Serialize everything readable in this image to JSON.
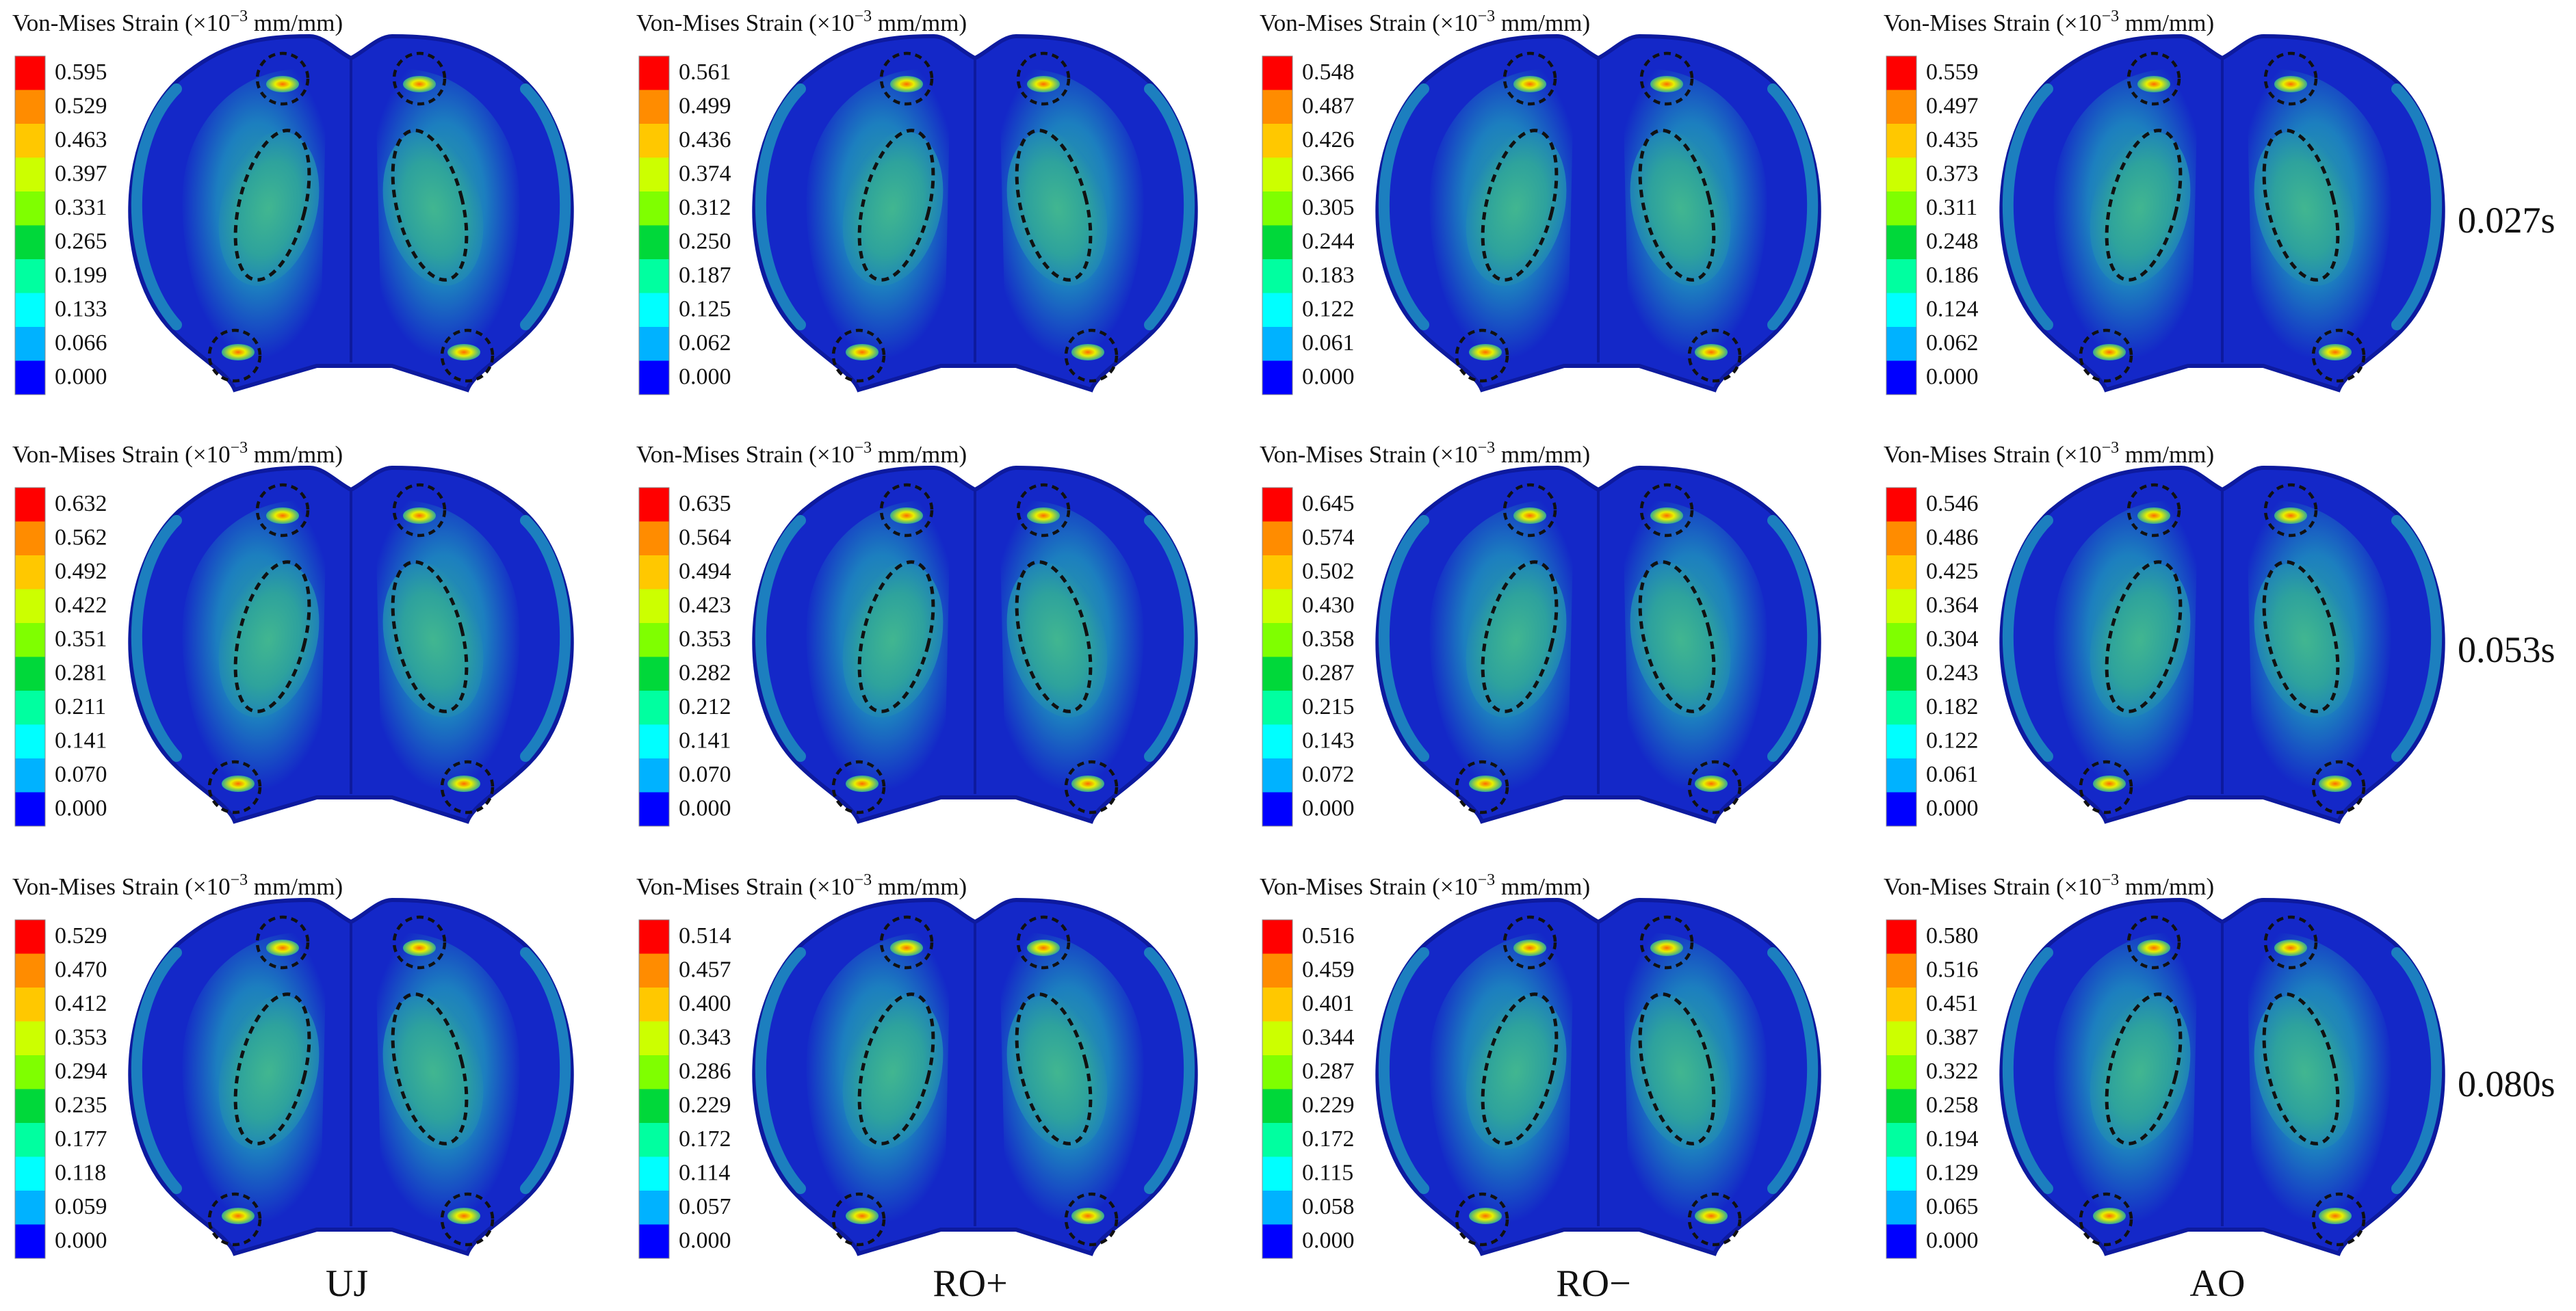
{
  "figure": {
    "legend_title": {
      "prefix": "Von-Mises Strain (",
      "times": "×",
      "ten": "10",
      "exponent": "−3",
      "unit": " mm/mm)"
    },
    "colormap": [
      "#ff0000",
      "#ff8c00",
      "#ffc800",
      "#ccff00",
      "#7fff00",
      "#00d83a",
      "#00ffa0",
      "#00ffff",
      "#00b2ff",
      "#0000ff"
    ],
    "surface_palette": {
      "outline": "#0d1a9e",
      "base": "#1428c8",
      "mid": "#1c7fbf",
      "high": "#2fa59a",
      "peak": "#44b98e",
      "hotspot": "#e8f000",
      "hotspot_core": "#ff6a00"
    },
    "columns": [
      "UJ",
      "RO+",
      "RO−",
      "AO"
    ],
    "rows": [
      "0.027s",
      "0.053s",
      "0.080s"
    ]
  },
  "panels": [
    {
      "column": "UJ",
      "time": "0.027s",
      "ticks": [
        "0.595",
        "0.529",
        "0.463",
        "0.397",
        "0.331",
        "0.265",
        "0.199",
        "0.133",
        "0.066",
        "0.000"
      ]
    },
    {
      "column": "RO+",
      "time": "0.027s",
      "ticks": [
        "0.561",
        "0.499",
        "0.436",
        "0.374",
        "0.312",
        "0.250",
        "0.187",
        "0.125",
        "0.062",
        "0.000"
      ]
    },
    {
      "column": "RO−",
      "time": "0.027s",
      "ticks": [
        "0.548",
        "0.487",
        "0.426",
        "0.366",
        "0.305",
        "0.244",
        "0.183",
        "0.122",
        "0.061",
        "0.000"
      ]
    },
    {
      "column": "AO",
      "time": "0.027s",
      "ticks": [
        "0.559",
        "0.497",
        "0.435",
        "0.373",
        "0.311",
        "0.248",
        "0.186",
        "0.124",
        "0.062",
        "0.000"
      ]
    },
    {
      "column": "UJ",
      "time": "0.053s",
      "ticks": [
        "0.632",
        "0.562",
        "0.492",
        "0.422",
        "0.351",
        "0.281",
        "0.211",
        "0.141",
        "0.070",
        "0.000"
      ]
    },
    {
      "column": "RO+",
      "time": "0.053s",
      "ticks": [
        "0.635",
        "0.564",
        "0.494",
        "0.423",
        "0.353",
        "0.282",
        "0.212",
        "0.141",
        "0.070",
        "0.000"
      ]
    },
    {
      "column": "RO−",
      "time": "0.053s",
      "ticks": [
        "0.645",
        "0.574",
        "0.502",
        "0.430",
        "0.358",
        "0.287",
        "0.215",
        "0.143",
        "0.072",
        "0.000"
      ]
    },
    {
      "column": "AO",
      "time": "0.053s",
      "ticks": [
        "0.546",
        "0.486",
        "0.425",
        "0.364",
        "0.304",
        "0.243",
        "0.182",
        "0.122",
        "0.061",
        "0.000"
      ]
    },
    {
      "column": "UJ",
      "time": "0.080s",
      "ticks": [
        "0.529",
        "0.470",
        "0.412",
        "0.353",
        "0.294",
        "0.235",
        "0.177",
        "0.118",
        "0.059",
        "0.000"
      ]
    },
    {
      "column": "RO+",
      "time": "0.080s",
      "ticks": [
        "0.514",
        "0.457",
        "0.400",
        "0.343",
        "0.286",
        "0.229",
        "0.172",
        "0.114",
        "0.057",
        "0.000"
      ]
    },
    {
      "column": "RO−",
      "time": "0.080s",
      "ticks": [
        "0.516",
        "0.459",
        "0.401",
        "0.344",
        "0.287",
        "0.229",
        "0.172",
        "0.115",
        "0.058",
        "0.000"
      ]
    },
    {
      "column": "AO",
      "time": "0.080s",
      "ticks": [
        "0.580",
        "0.516",
        "0.451",
        "0.387",
        "0.322",
        "0.258",
        "0.194",
        "0.129",
        "0.065",
        "0.000"
      ]
    }
  ]
}
